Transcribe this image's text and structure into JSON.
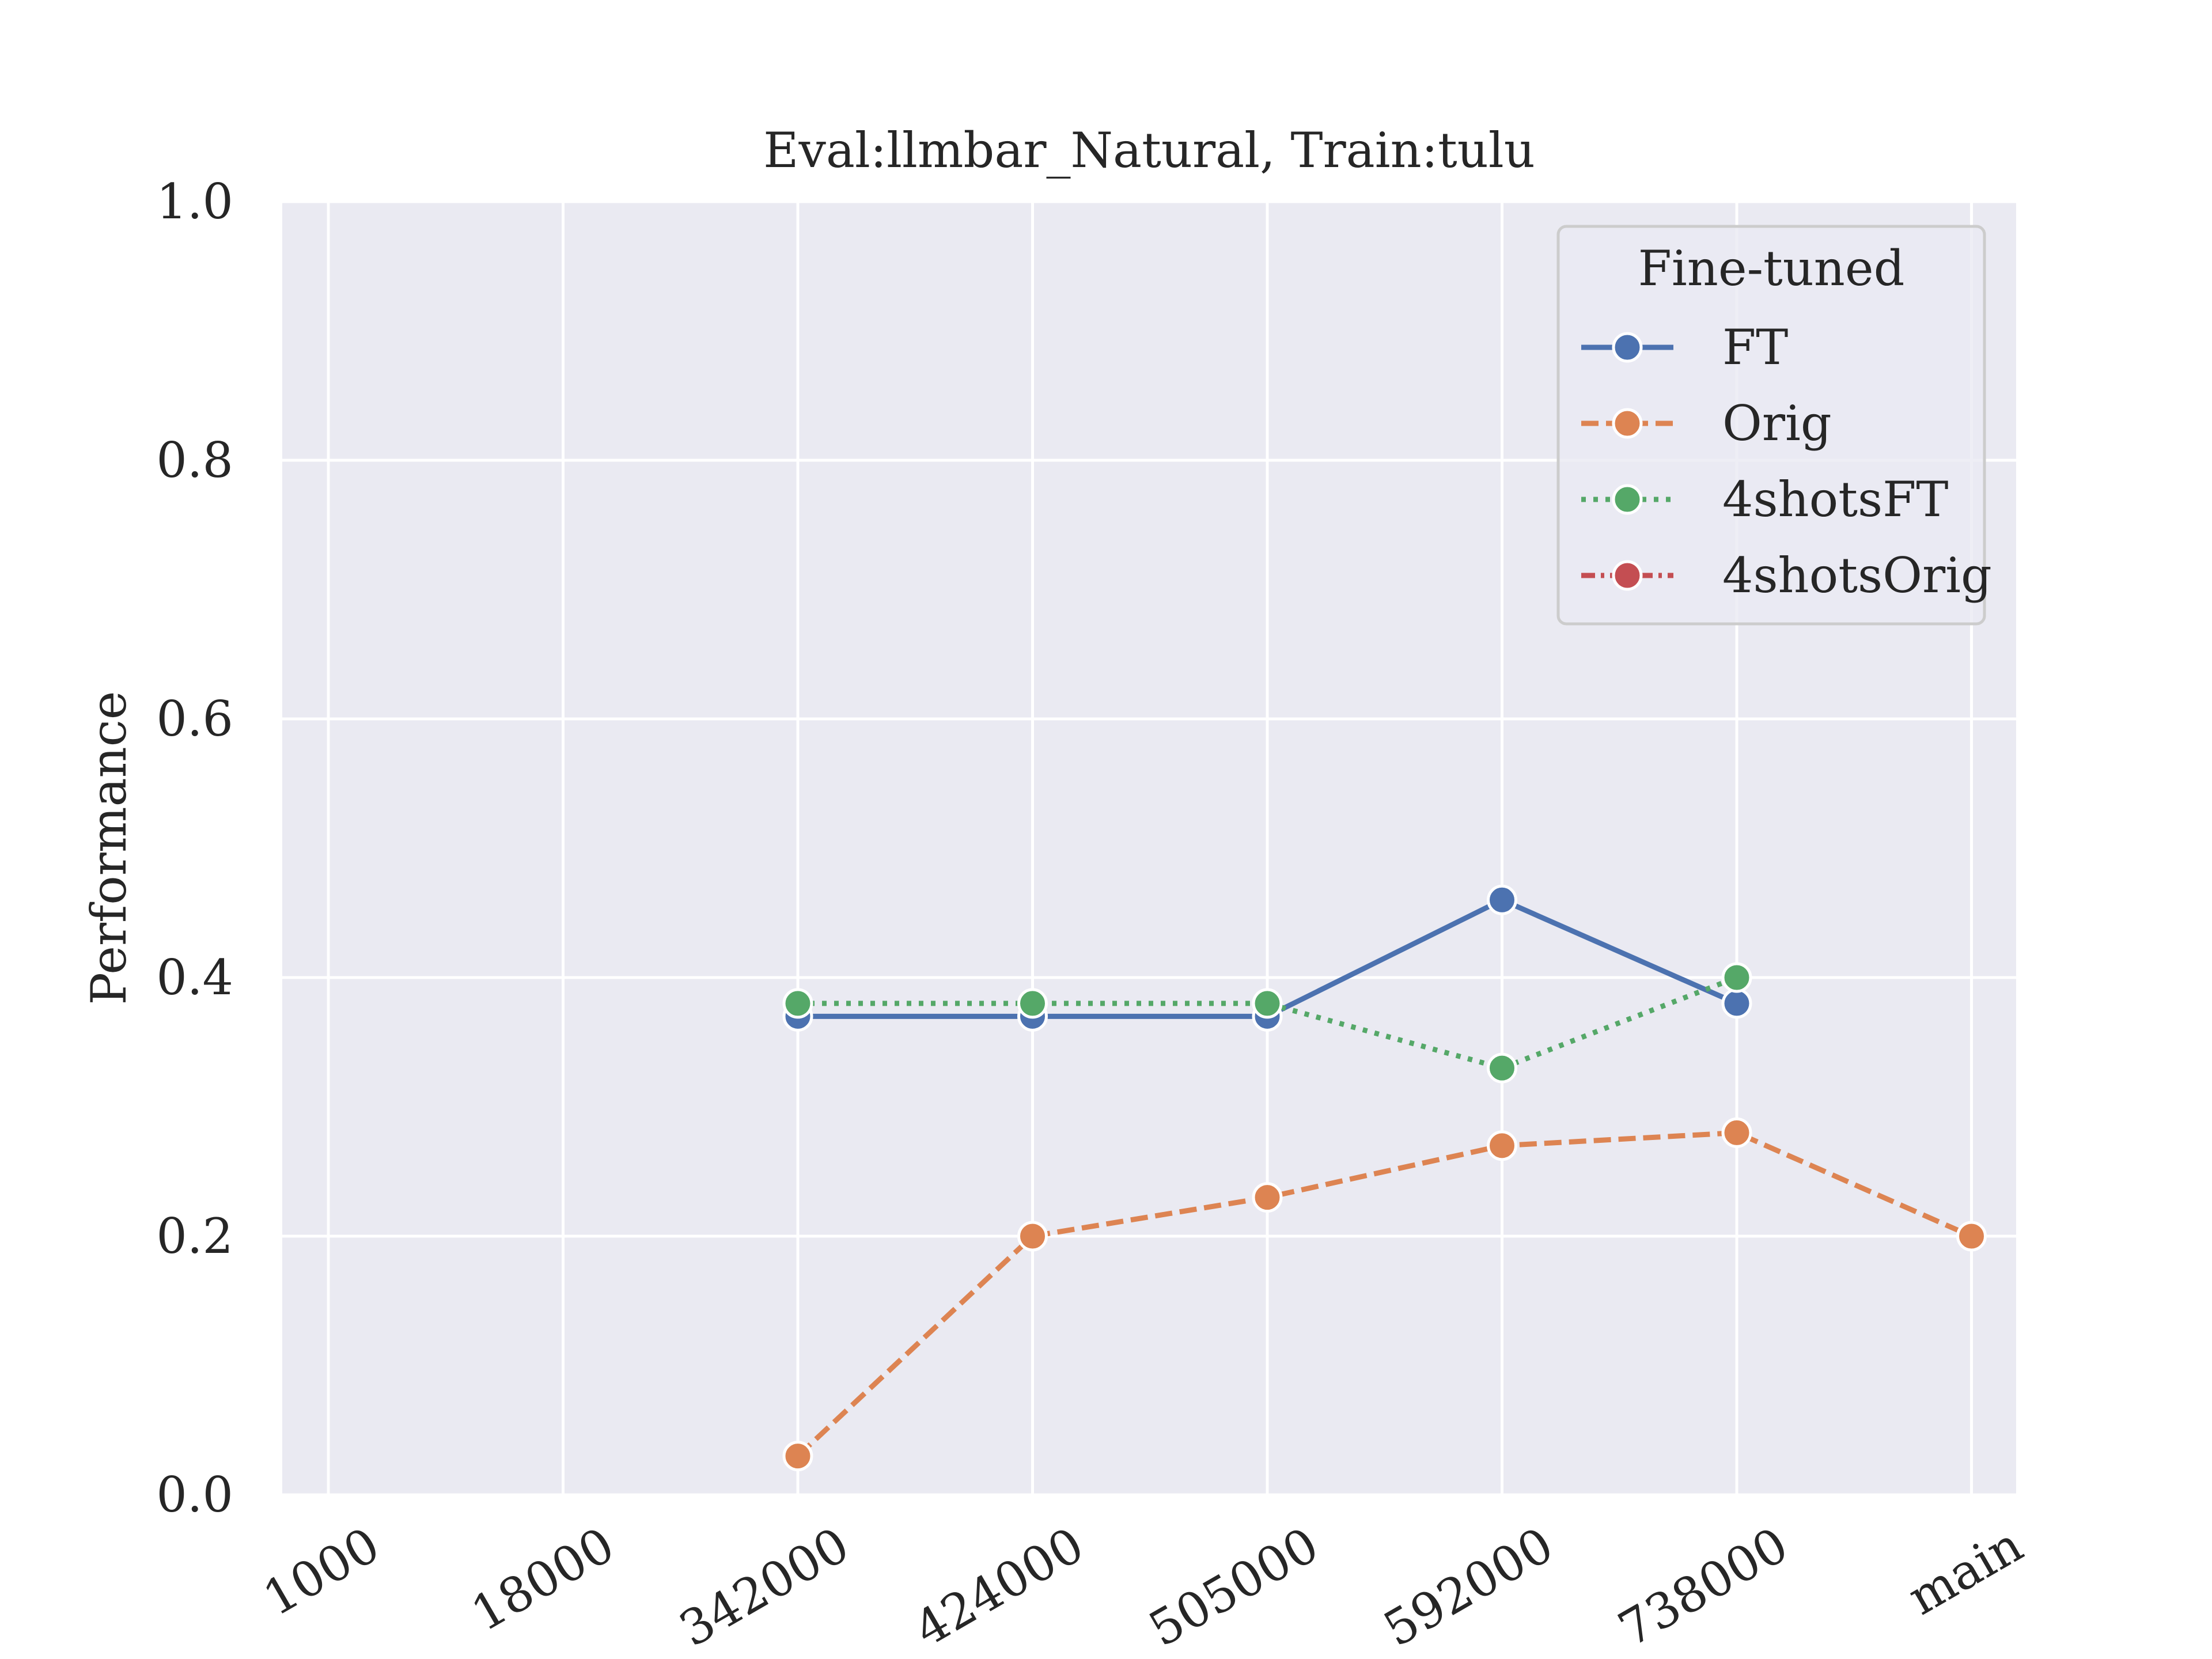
{
  "chart_data": {
    "type": "line",
    "title": "Eval:llmbar_Natural, Train:tulu",
    "xlabel": "",
    "ylabel": "Performance",
    "categories": [
      "1000",
      "18000",
      "342000",
      "424000",
      "505000",
      "592000",
      "738000",
      "main"
    ],
    "ylim": [
      0,
      1.0
    ],
    "yticks": [
      "0.0",
      "0.2",
      "0.4",
      "0.6",
      "0.8",
      "1.0"
    ],
    "grid": true,
    "legend": {
      "title": "Fine-tuned",
      "placement": "top-right"
    },
    "series": [
      {
        "name": "FT",
        "color": "#4c72b0",
        "dash": "solid",
        "values": [
          null,
          null,
          0.37,
          0.37,
          0.37,
          0.46,
          0.38,
          null
        ]
      },
      {
        "name": "Orig",
        "color": "#dd8452",
        "dash": "dashed",
        "values": [
          null,
          null,
          0.03,
          0.2,
          0.23,
          0.27,
          0.28,
          0.2
        ]
      },
      {
        "name": "4shotsFT",
        "color": "#55a868",
        "dash": "dotted",
        "values": [
          null,
          null,
          0.38,
          0.38,
          0.38,
          0.33,
          0.4,
          null
        ]
      },
      {
        "name": "4shotsOrig",
        "color": "#c44e52",
        "dash": "dashdot",
        "values": [
          null,
          null,
          null,
          null,
          null,
          null,
          null,
          null
        ]
      }
    ],
    "plot_background": "#eaeaf2"
  }
}
